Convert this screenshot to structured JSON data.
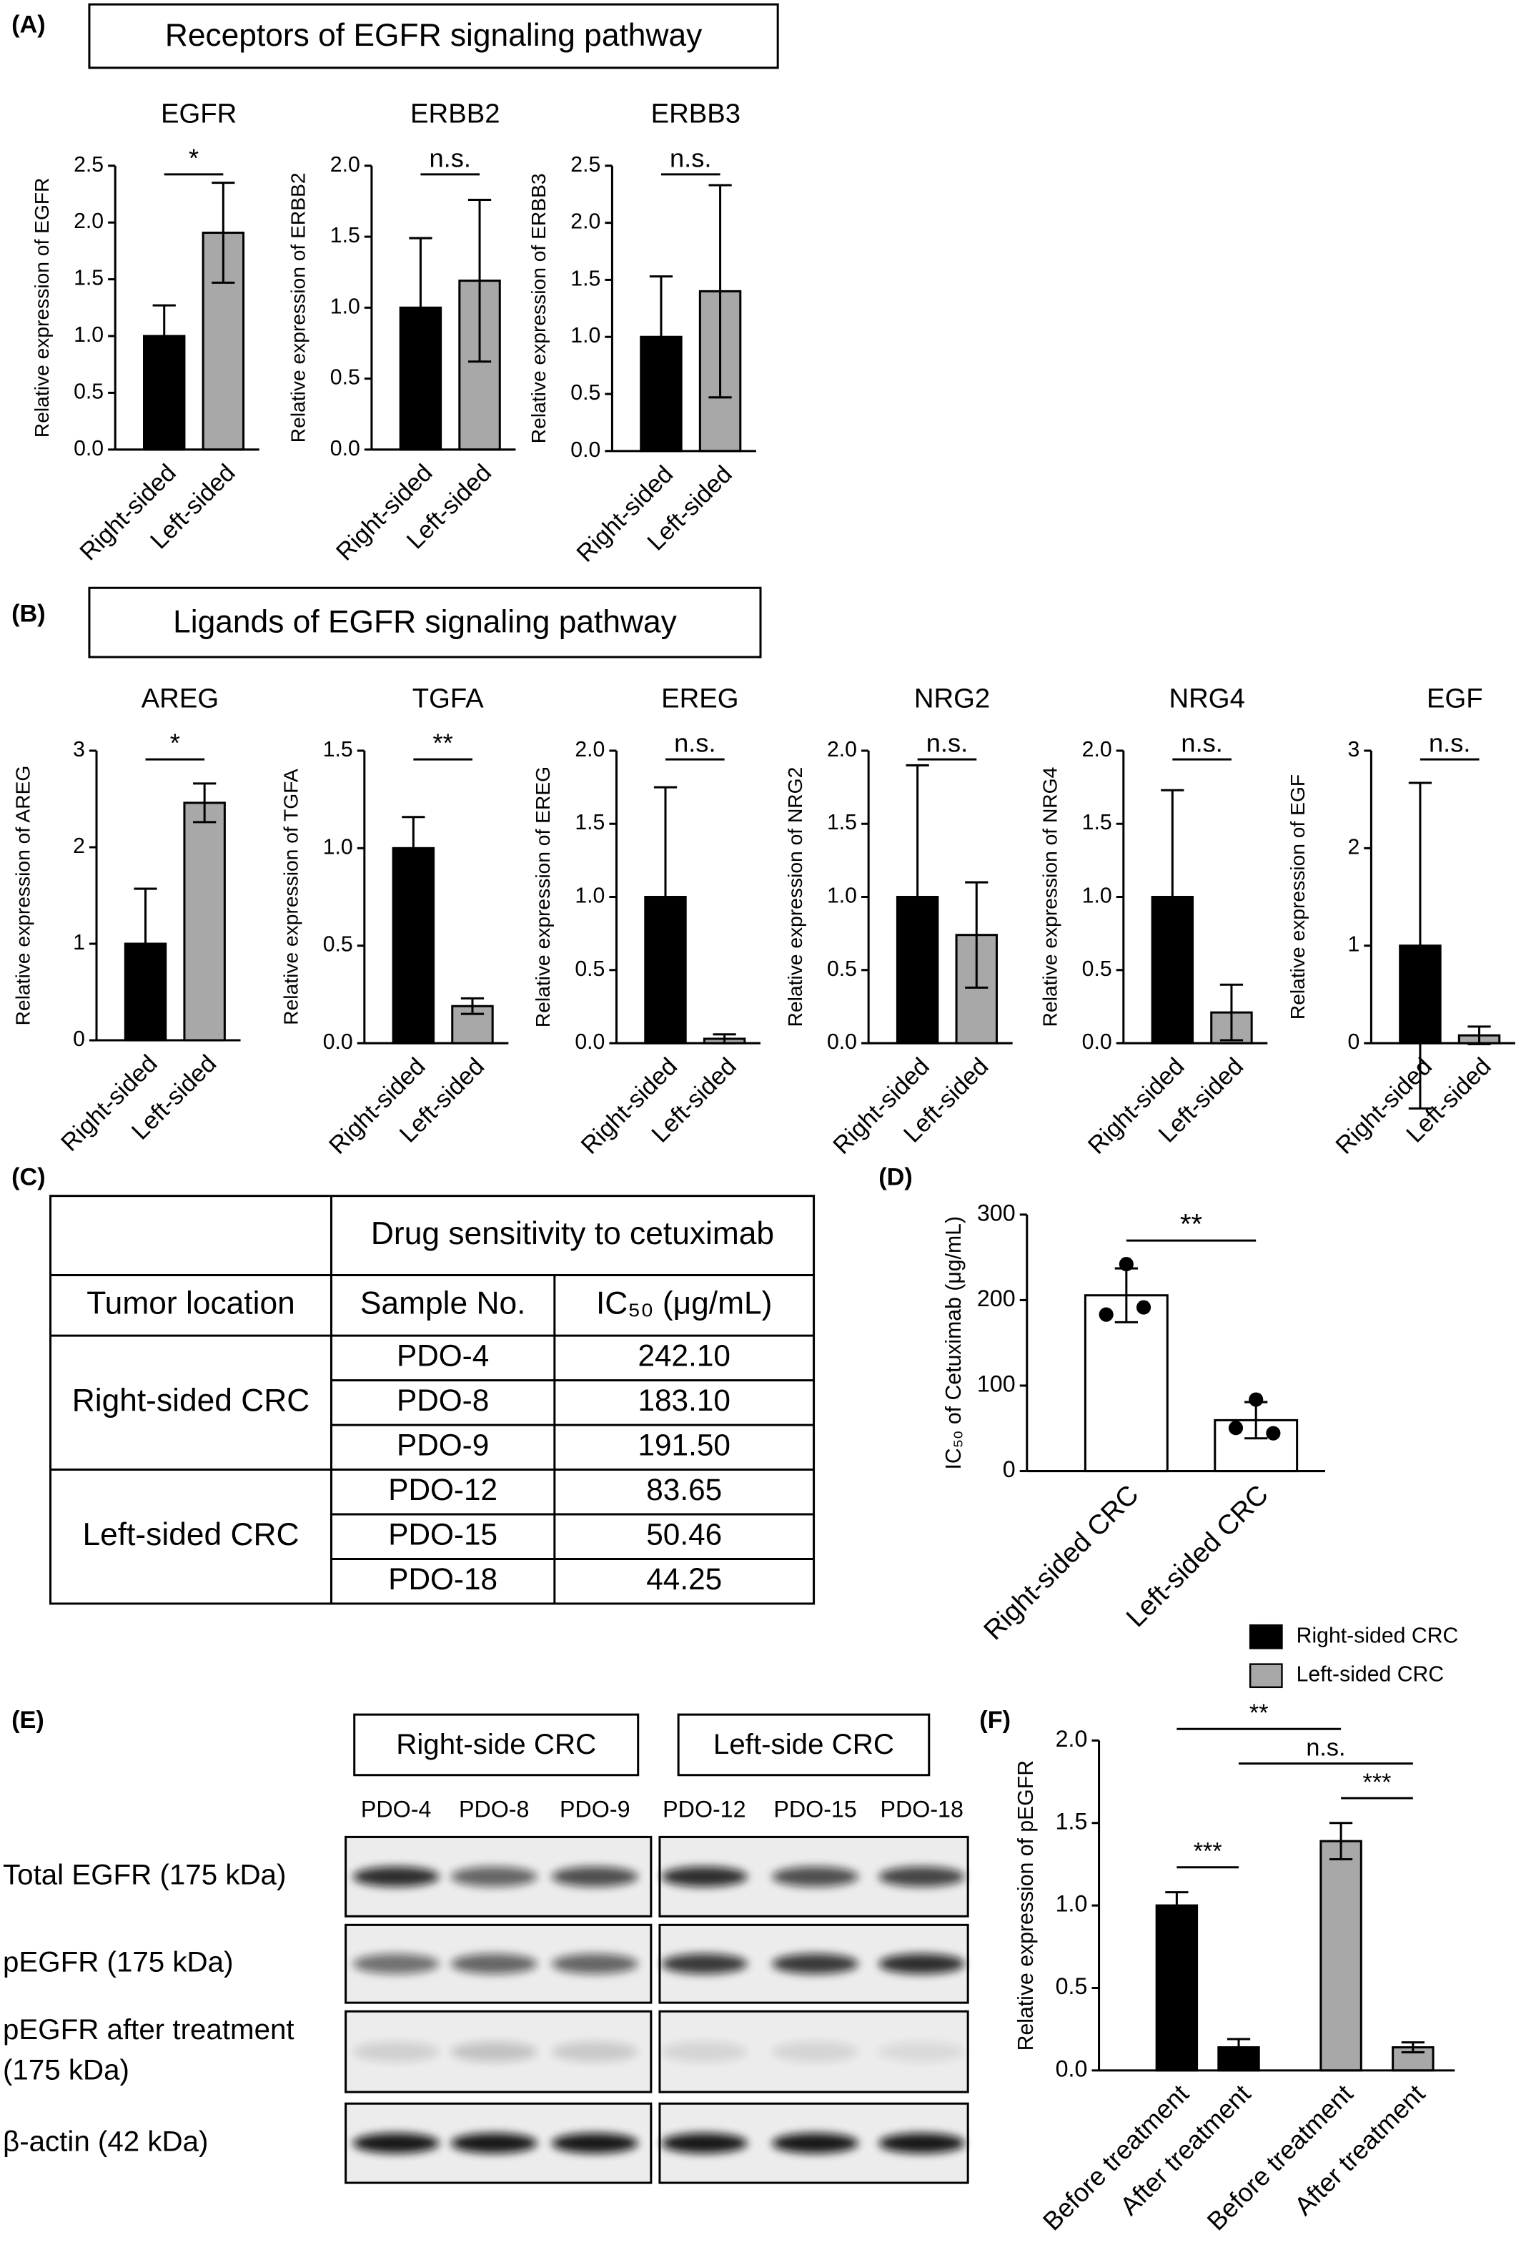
{
  "panel_labels": [
    "(A)",
    "(B)",
    "(C)",
    "(D)",
    "(E)",
    "(F)"
  ],
  "section_titles": [
    "Receptors of EGFR signaling pathway",
    "Ligands of EGFR signaling pathway"
  ],
  "chart_data": [
    {
      "type": "bar",
      "title": "EGFR",
      "y_label": "Relative expression of EGFR",
      "categories": [
        "Right-sided",
        "Left-sided"
      ],
      "values": [
        1.0,
        1.91
      ],
      "errors": [
        0.27,
        0.44
      ],
      "colors": [
        "#000000",
        "#a8a8a8"
      ],
      "ylim": [
        0,
        2.5
      ],
      "yticks": [
        {
          "value": 0,
          "label": "0.0"
        },
        0.5,
        {
          "value": 1,
          "label": "1.0"
        },
        1.5,
        {
          "value": 2,
          "label": "2.0"
        },
        2.5
      ],
      "significance": "*"
    },
    {
      "type": "bar",
      "title": "ERBB2",
      "y_label": "Relative expression of ERBB2",
      "categories": [
        "Right-sided",
        "Left-sided"
      ],
      "values": [
        1.0,
        1.19
      ],
      "errors": [
        0.49,
        0.57
      ],
      "colors": [
        "#000000",
        "#a8a8a8"
      ],
      "ylim": [
        0,
        2.0
      ],
      "yticks": [
        {
          "value": 0,
          "label": "0.0"
        },
        0.5,
        {
          "value": 1,
          "label": "1.0"
        },
        1.5,
        {
          "value": 2,
          "label": "2.0"
        }
      ],
      "significance": "n.s."
    },
    {
      "type": "bar",
      "title": "ERBB3",
      "y_label": "Relative expression of ERBB3",
      "categories": [
        "Right-sided",
        "Left-sided"
      ],
      "values": [
        1.0,
        1.4
      ],
      "errors": [
        0.53,
        0.93
      ],
      "colors": [
        "#000000",
        "#a8a8a8"
      ],
      "ylim": [
        0,
        2.5
      ],
      "yticks": [
        {
          "value": 0,
          "label": "0.0"
        },
        0.5,
        {
          "value": 1,
          "label": "1.0"
        },
        1.5,
        {
          "value": 2,
          "label": "2.0"
        },
        2.5
      ],
      "significance": "n.s."
    },
    {
      "type": "bar",
      "title": "AREG",
      "y_label": "Relative expression of AREG",
      "categories": [
        "Right-sided",
        "Left-sided"
      ],
      "values": [
        1.0,
        2.46
      ],
      "errors": [
        0.57,
        0.2
      ],
      "colors": [
        "#000000",
        "#a8a8a8"
      ],
      "ylim": [
        0,
        3
      ],
      "yticks": [
        0,
        1,
        2,
        3
      ],
      "significance": "*"
    },
    {
      "type": "bar",
      "title": "TGFA",
      "y_label": "Relative expression of TGFA",
      "categories": [
        "Right-sided",
        "Left-sided"
      ],
      "values": [
        1.0,
        0.19
      ],
      "errors": [
        0.16,
        0.04
      ],
      "colors": [
        "#000000",
        "#a8a8a8"
      ],
      "ylim": [
        0,
        1.5
      ],
      "yticks": [
        {
          "value": 0,
          "label": "0.0"
        },
        0.5,
        {
          "value": 1,
          "label": "1.0"
        },
        1.5
      ],
      "significance": "**"
    },
    {
      "type": "bar",
      "title": "EREG",
      "y_label": "Relative expression of EREG",
      "categories": [
        "Right-sided",
        "Left-sided"
      ],
      "values": [
        1.0,
        0.03
      ],
      "errors": [
        0.75,
        0.03
      ],
      "colors": [
        "#000000",
        "#a8a8a8"
      ],
      "ylim": [
        0,
        2.0
      ],
      "yticks": [
        {
          "value": 0,
          "label": "0.0"
        },
        0.5,
        {
          "value": 1,
          "label": "1.0"
        },
        1.5,
        {
          "value": 2,
          "label": "2.0"
        }
      ],
      "significance": "n.s."
    },
    {
      "type": "bar",
      "title": "NRG2",
      "y_label": "Relative expression of NRG2",
      "categories": [
        "Right-sided",
        "Left-sided"
      ],
      "values": [
        1.0,
        0.74
      ],
      "errors": [
        0.9,
        0.36
      ],
      "colors": [
        "#000000",
        "#a8a8a8"
      ],
      "ylim": [
        0,
        2.0
      ],
      "yticks": [
        {
          "value": 0,
          "label": "0.0"
        },
        0.5,
        {
          "value": 1,
          "label": "1.0"
        },
        1.5,
        {
          "value": 2,
          "label": "2.0"
        }
      ],
      "significance": "n.s."
    },
    {
      "type": "bar",
      "title": "NRG4",
      "y_label": "Relative expression of NRG4",
      "categories": [
        "Right-sided",
        "Left-sided"
      ],
      "values": [
        1.0,
        0.21
      ],
      "errors": [
        0.73,
        0.19
      ],
      "colors": [
        "#000000",
        "#a8a8a8"
      ],
      "ylim": [
        0,
        2.0
      ],
      "yticks": [
        {
          "value": 0,
          "label": "0.0"
        },
        0.5,
        {
          "value": 1,
          "label": "1.0"
        },
        1.5,
        {
          "value": 2,
          "label": "2.0"
        }
      ],
      "significance": "n.s."
    },
    {
      "type": "bar",
      "title": "EGF",
      "y_label": "Relative expression of EGF",
      "categories": [
        "Right-sided",
        "Left-sided"
      ],
      "values": [
        1.0,
        0.08
      ],
      "errors": [
        1.67,
        0.09
      ],
      "colors": [
        "#000000",
        "#a8a8a8"
      ],
      "ylim": [
        0,
        3
      ],
      "yticks": [
        0,
        1,
        2,
        3
      ],
      "significance": "n.s."
    },
    {
      "type": "bar",
      "y_label": "IC₅₀ of Cetuximab (μg/mL)",
      "categories": [
        "Right-sided CRC",
        "Left-sided CRC"
      ],
      "values": [
        205.6,
        59.5
      ],
      "errors": [
        31.5,
        21.2
      ],
      "points": [
        [
          242.1,
          183.1,
          191.5
        ],
        [
          83.65,
          50.46,
          44.25
        ]
      ],
      "colors": [
        "#ffffff",
        "#ffffff"
      ],
      "ylim": [
        0,
        300
      ],
      "yticks": [
        0,
        100,
        200,
        300
      ],
      "significance": "**"
    },
    {
      "type": "grouped_bar",
      "y_label": "Relative expression of pEGFR",
      "categories": [
        "Before treatment",
        "After treatment",
        "Before treatment",
        "After treatment"
      ],
      "series": [
        {
          "name": "Right-sided CRC",
          "color": "#000000",
          "values": [
            1.0,
            0.14,
            null,
            null
          ],
          "errors": [
            0.08,
            0.05,
            null,
            null
          ]
        },
        {
          "name": "Left-sided CRC",
          "color": "#a8a8a8",
          "values": [
            null,
            null,
            1.39,
            0.14
          ],
          "errors": [
            null,
            null,
            0.11,
            0.03
          ]
        }
      ],
      "ylim": [
        0,
        2.0
      ],
      "yticks": [
        {
          "value": 0,
          "label": "0.0"
        },
        0.5,
        {
          "value": 1,
          "label": "1.0"
        },
        1.5,
        {
          "value": 2,
          "label": "2.0"
        }
      ],
      "significance": [
        "***",
        "***",
        "**",
        "n.s."
      ]
    }
  ],
  "table": {
    "header": "Drug sensitivity to cetuximab",
    "columns": [
      "Tumor location",
      "Sample No.",
      "IC₅₀ (μg/mL)"
    ],
    "groups": [
      {
        "location": "Right-sided CRC",
        "rows": [
          [
            "PDO-4",
            "242.10"
          ],
          [
            "PDO-8",
            "183.10"
          ],
          [
            "PDO-9",
            "191.50"
          ]
        ]
      },
      {
        "location": "Left-sided CRC",
        "rows": [
          [
            "PDO-12",
            "83.65"
          ],
          [
            "PDO-15",
            "50.46"
          ],
          [
            "PDO-18",
            "44.25"
          ]
        ]
      }
    ]
  },
  "blot": {
    "groups": [
      "Right-side CRC",
      "Left-side CRC"
    ],
    "samples": [
      "PDO-4",
      "PDO-8",
      "PDO-9",
      "PDO-12",
      "PDO-15",
      "PDO-18"
    ],
    "rows": [
      [
        "Total EGFR (175 kDa)"
      ],
      [
        "pEGFR (175 kDa)"
      ],
      [
        "pEGFR after treatment",
        "(175 kDa)"
      ],
      [
        "β-actin (42 kDa)"
      ]
    ]
  }
}
